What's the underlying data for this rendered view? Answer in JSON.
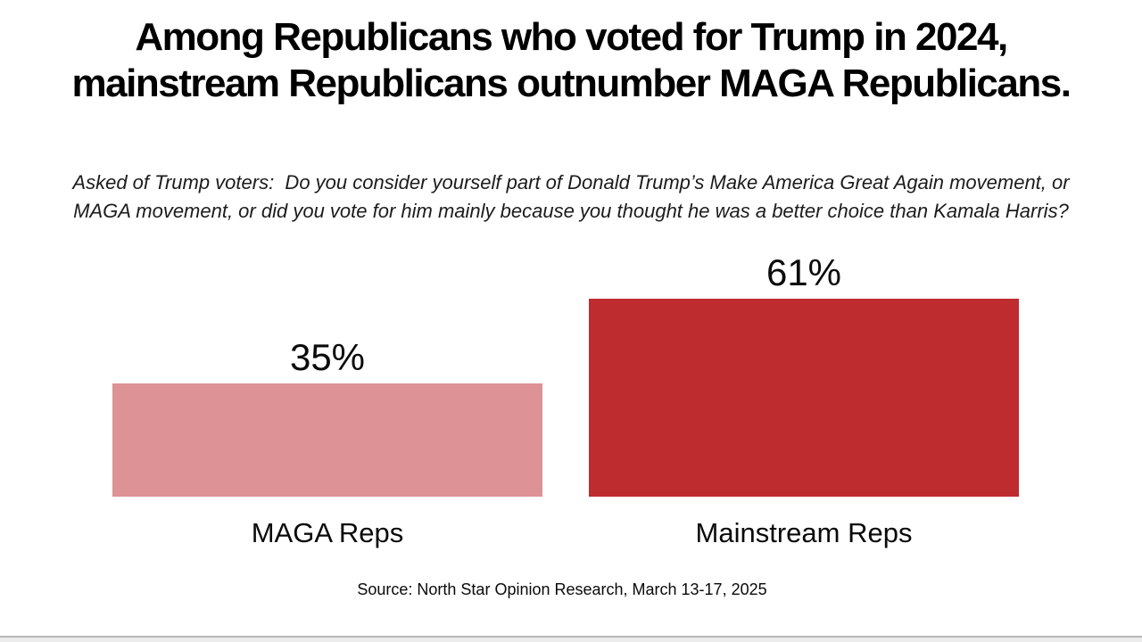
{
  "slide": {
    "title_line1": "Among Republicans who voted for Trump in 2024,",
    "title_line2": "mainstream Republicans outnumber MAGA Republicans.",
    "subtitle_line1": "Asked of Trump voters:  Do you consider yourself part of Donald Trump’s Make America Great Again movement, or",
    "subtitle_line2": "MAGA movement, or did you vote for him mainly because you thought he was a better choice than Kamala Harris?",
    "source": "Source: North Star Opinion Research, March 13-17, 2025"
  },
  "chart_data": {
    "type": "bar",
    "categories": [
      "MAGA Reps",
      "Mainstream Reps"
    ],
    "values": [
      35,
      61
    ],
    "value_labels": [
      "35%",
      "61%"
    ],
    "bar_colors": [
      "#DD9295",
      "#BE2C30"
    ],
    "title": "Among Republicans who voted for Trump in 2024, mainstream Republicans outnumber MAGA Republicans.",
    "subtitle": "Asked of Trump voters:  Do you consider yourself part of Donald Trump’s Make America Great Again movement, or MAGA movement, or did you vote for him mainly because you thought he was a better choice than Kamala Harris?",
    "source": "Source: North Star Opinion Research, March 13-17, 2025",
    "xlabel": "",
    "ylabel": "",
    "ylim": [
      0,
      70
    ],
    "grid": false,
    "legend": "none",
    "value_label_position": "above-bar"
  }
}
